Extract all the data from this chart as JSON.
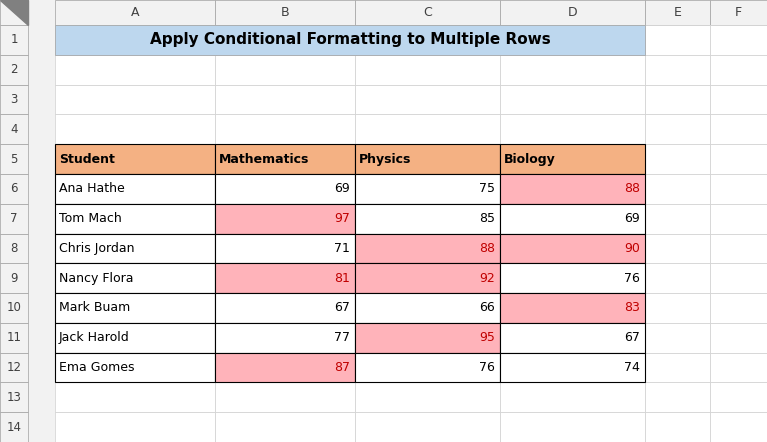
{
  "title": "Apply Conditional Formatting to Multiple Rows",
  "title_bg": "#BDD7EE",
  "header_bg": "#F4B183",
  "col_headers": [
    "Student",
    "Mathematics",
    "Physics",
    "Biology"
  ],
  "rows": [
    [
      "Ana Hathe",
      69,
      75,
      88
    ],
    [
      "Tom Mach",
      97,
      85,
      69
    ],
    [
      "Chris Jordan",
      71,
      88,
      90
    ],
    [
      "Nancy Flora",
      81,
      92,
      76
    ],
    [
      "Mark Buam",
      67,
      66,
      83
    ],
    [
      "Jack Harold",
      77,
      95,
      67
    ],
    [
      "Ema Gomes",
      87,
      76,
      74
    ]
  ],
  "highlight_color": "#FFB3BA",
  "highlight_text_color": "#C00000",
  "normal_text_color": "#000000",
  "spreadsheet_bg": "#FFFFFF",
  "outer_bg": "#F2F2F2",
  "col_labels": [
    "A",
    "B",
    "C",
    "D",
    "E",
    "F"
  ],
  "row_header_bg": "#F2F2F2",
  "col_header_bg": "#F2F2F2",
  "border_color": "#A0A0A0",
  "table_border_color": "#000000",
  "grid_line_color": "#D0D0D0",
  "figsize": [
    7.67,
    4.42
  ],
  "dpi": 100
}
